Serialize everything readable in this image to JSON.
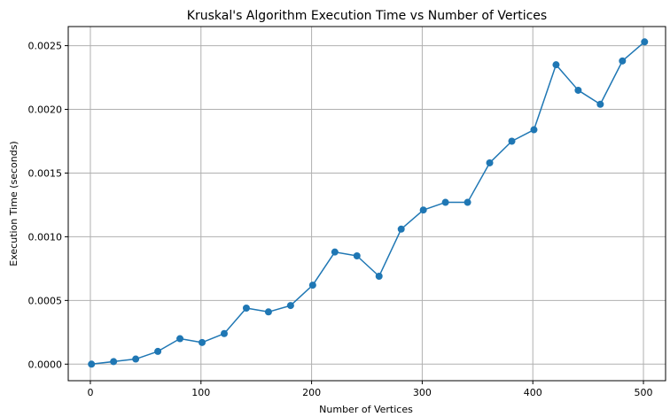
{
  "chart_data": {
    "type": "line",
    "title": "Kruskal's Algorithm Execution Time vs Number of Vertices",
    "xlabel": "Number of Vertices",
    "ylabel": "Execution Time (seconds)",
    "xlim": [
      -20,
      520
    ],
    "ylim": [
      -0.00013,
      0.00265
    ],
    "x_ticks": [
      0,
      100,
      200,
      300,
      400,
      500
    ],
    "x_tick_labels": [
      "0",
      "100",
      "200",
      "300",
      "400",
      "500"
    ],
    "y_ticks": [
      0,
      0.0005,
      0.001,
      0.0015,
      0.002,
      0.0025
    ],
    "y_tick_labels": [
      "0.0000",
      "0.0005",
      "0.0010",
      "0.0015",
      "0.0020",
      "0.0025"
    ],
    "grid": true,
    "series": [
      {
        "color": "#1f77b4",
        "marker": "circle",
        "x": [
          1,
          21,
          41,
          61,
          81,
          101,
          121,
          141,
          161,
          181,
          201,
          221,
          241,
          261,
          281,
          301,
          321,
          341,
          361,
          381,
          401,
          421,
          441,
          461,
          481,
          501
        ],
        "y": [
          0.0,
          2e-05,
          4e-05,
          0.0001,
          0.0002,
          0.00017,
          0.00024,
          0.00044,
          0.00041,
          0.00046,
          0.00062,
          0.00088,
          0.00085,
          0.00069,
          0.00106,
          0.00121,
          0.00127,
          0.00127,
          0.00158,
          0.00175,
          0.00184,
          0.00235,
          0.00215,
          0.00204,
          0.00238,
          0.00253
        ]
      }
    ]
  }
}
